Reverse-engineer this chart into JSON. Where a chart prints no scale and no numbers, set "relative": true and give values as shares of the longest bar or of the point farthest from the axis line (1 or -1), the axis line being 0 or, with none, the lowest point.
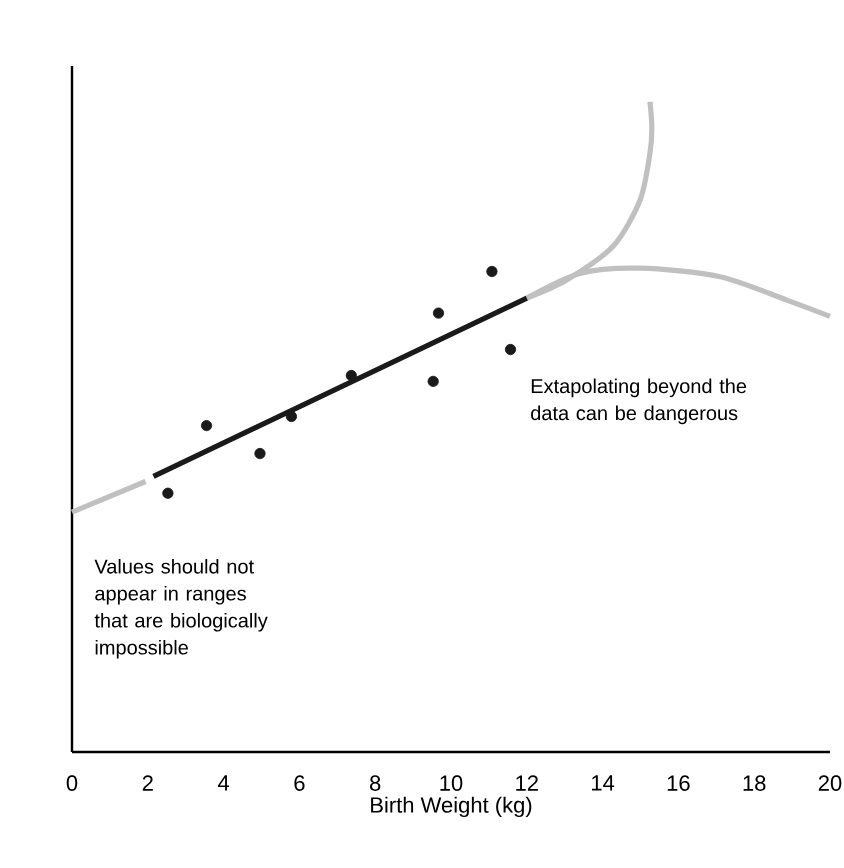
{
  "chart_data": {
    "type": "scatter",
    "xlabel": "Birth Weight (kg)",
    "xlim": [
      0,
      20
    ],
    "xticks": [
      0,
      2,
      4,
      6,
      8,
      10,
      12,
      14,
      16,
      18,
      20
    ],
    "relative": true,
    "tick_labels": "x",
    "grid": false,
    "marker": "circle",
    "annotations": [
      "Extapolating beyond the data can be dangerous",
      "Values should not appear in ranges that are biologically impossible"
    ],
    "series": [
      {
        "type": "line",
        "marker": "none",
        "color": "#c0c0c0",
        "x": [
          0,
          1.94
        ],
        "values": [
          0.369,
          0.416
        ]
      },
      {
        "type": "line",
        "marker": "none",
        "color": "#c0c0c0",
        "x": [
          12.0,
          13.05,
          14.28,
          14.99,
          15.25,
          15.3,
          15.25
        ],
        "values": [
          0.698,
          0.726,
          0.778,
          0.849,
          0.921,
          0.96,
          1.0
        ]
      },
      {
        "type": "line",
        "marker": "none",
        "color": "#c0c0c0",
        "x": [
          12.0,
          13.4,
          14.99,
          17.1,
          18.86,
          20
        ],
        "values": [
          0.698,
          0.736,
          0.744,
          0.731,
          0.695,
          0.67
        ]
      },
      {
        "type": "line",
        "marker": "none",
        "color": "#1a1a1a",
        "x": [
          2.15,
          12.0
        ],
        "values": [
          0.424,
          0.698
        ]
      },
      {
        "color": "#1a1a1a",
        "x": [
          2.53,
          3.55,
          4.96,
          5.79,
          7.37,
          9.53,
          9.67,
          11.08,
          11.57
        ],
        "values": [
          0.398,
          0.502,
          0.459,
          0.516,
          0.579,
          0.57,
          0.675,
          0.739,
          0.619
        ]
      }
    ]
  }
}
